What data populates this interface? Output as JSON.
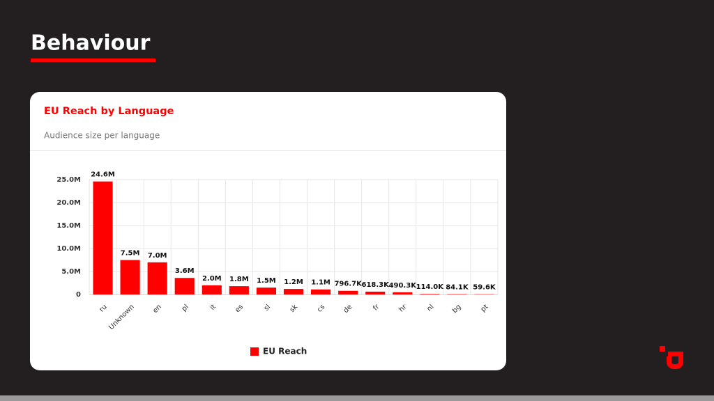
{
  "header": {
    "title": "Behaviour"
  },
  "chart_data": {
    "type": "bar",
    "title": "EU Reach by Language",
    "subtitle": "Audience size per language",
    "categories": [
      "ru",
      "Unknown",
      "en",
      "pl",
      "it",
      "es",
      "sl",
      "sk",
      "cs",
      "de",
      "fr",
      "hr",
      "nl",
      "bg",
      "pt"
    ],
    "series": [
      {
        "name": "EU Reach",
        "color": "#ff0000",
        "values": [
          24600000,
          7500000,
          7000000,
          3600000,
          2000000,
          1800000,
          1500000,
          1200000,
          1100000,
          796700,
          618300,
          490300,
          114000,
          84100,
          59600
        ],
        "value_labels": [
          "24.6M",
          "7.5M",
          "7.0M",
          "3.6M",
          "2.0M",
          "1.8M",
          "1.5M",
          "1.2M",
          "1.1M",
          "796.7K",
          "618.3K",
          "490.3K",
          "114.0K",
          "84.1K",
          "59.6K"
        ]
      }
    ],
    "ylim": [
      0,
      25000000
    ],
    "yticks": [
      0,
      {
        "value": 5000000,
        "label": "5.0M"
      },
      {
        "value": 10000000,
        "label": "10.0M"
      },
      {
        "value": 15000000,
        "label": "15.0M"
      },
      {
        "value": 20000000,
        "label": "20.0M"
      },
      {
        "value": 25000000,
        "label": "25.0M"
      }
    ],
    "grid": true,
    "legend": "bottom"
  }
}
